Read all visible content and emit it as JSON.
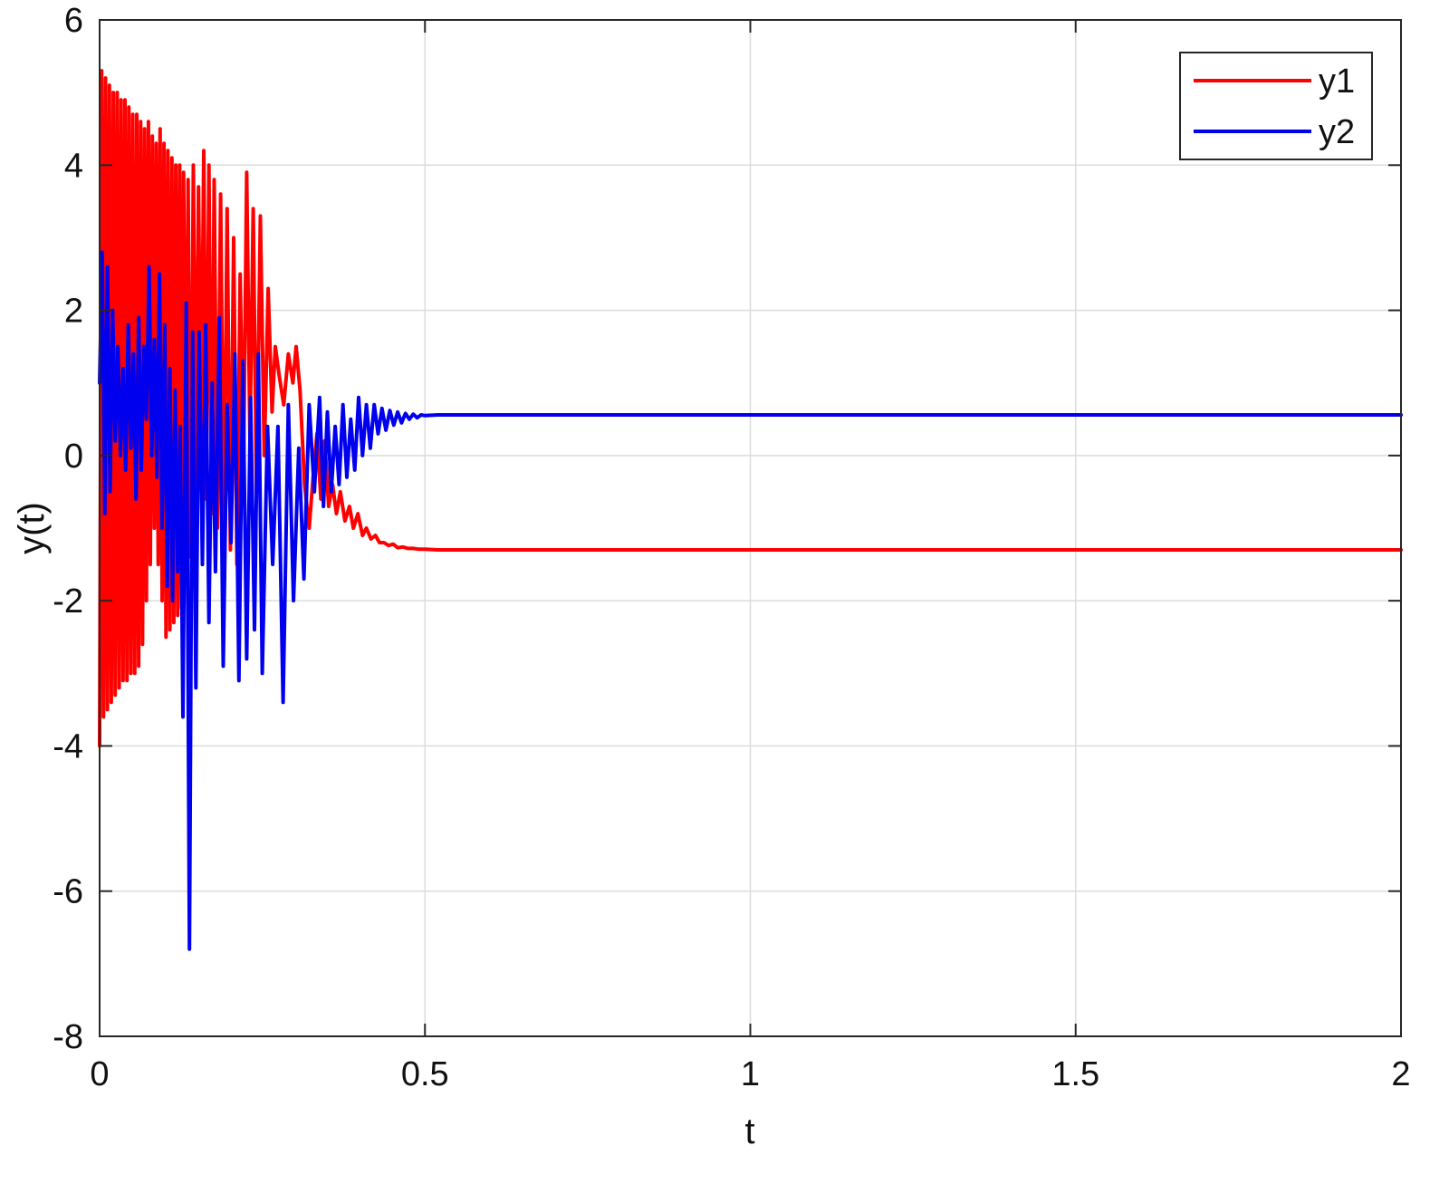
{
  "chart_data": {
    "type": "line",
    "title": "",
    "xlabel": "t",
    "ylabel": "y(t)",
    "xlim": [
      0,
      2
    ],
    "ylim": [
      -8,
      6
    ],
    "xticks": [
      0,
      0.5,
      1,
      1.5,
      2
    ],
    "xtick_labels": [
      "0",
      "0.5",
      "1",
      "1.5",
      "2"
    ],
    "yticks": [
      -8,
      -6,
      -4,
      -2,
      0,
      2,
      4,
      6
    ],
    "ytick_labels": [
      "-8",
      "-6",
      "-4",
      "-2",
      "0",
      "2",
      "4",
      "6"
    ],
    "grid": true,
    "legend_position": "top-right",
    "series": [
      {
        "name": "y1",
        "color": "#ff0000",
        "x": [
          0,
          0.003,
          0.006,
          0.009,
          0.012,
          0.015,
          0.018,
          0.021,
          0.024,
          0.027,
          0.03,
          0.033,
          0.036,
          0.039,
          0.042,
          0.045,
          0.048,
          0.051,
          0.054,
          0.057,
          0.06,
          0.063,
          0.066,
          0.069,
          0.072,
          0.075,
          0.078,
          0.081,
          0.084,
          0.087,
          0.09,
          0.093,
          0.096,
          0.099,
          0.102,
          0.105,
          0.108,
          0.111,
          0.114,
          0.117,
          0.12,
          0.123,
          0.126,
          0.129,
          0.133,
          0.136,
          0.14,
          0.144,
          0.148,
          0.152,
          0.156,
          0.16,
          0.164,
          0.168,
          0.172,
          0.176,
          0.181,
          0.186,
          0.191,
          0.196,
          0.201,
          0.206,
          0.211,
          0.216,
          0.221,
          0.226,
          0.231,
          0.236,
          0.241,
          0.247,
          0.253,
          0.259,
          0.265,
          0.27,
          0.276,
          0.283,
          0.29,
          0.297,
          0.302,
          0.308,
          0.315,
          0.322,
          0.328,
          0.334,
          0.34,
          0.346,
          0.352,
          0.358,
          0.364,
          0.37,
          0.377,
          0.384,
          0.39,
          0.397,
          0.404,
          0.41,
          0.417,
          0.424,
          0.43,
          0.437,
          0.444,
          0.451,
          0.458,
          0.466,
          0.474,
          0.482,
          0.49,
          0.5,
          0.52,
          0.55,
          0.6,
          0.8,
          1.0,
          1.2,
          1.4,
          1.6,
          1.8,
          2.0
        ],
        "y": [
          -4.0,
          5.3,
          -3.6,
          5.2,
          -3.5,
          5.1,
          -3.4,
          5.0,
          -3.3,
          5.0,
          -3.2,
          4.9,
          -3.1,
          4.9,
          -3.1,
          4.8,
          -3.0,
          4.7,
          -3.0,
          4.7,
          -2.9,
          4.6,
          -2.6,
          4.5,
          -2.0,
          4.6,
          -1.5,
          4.4,
          -1.0,
          4.3,
          -1.5,
          4.5,
          -2.0,
          4.3,
          -2.5,
          4.2,
          -2.4,
          4.1,
          -2.3,
          4.0,
          -2.2,
          4.0,
          -2.1,
          3.9,
          -0.7,
          3.8,
          -1.4,
          4.0,
          -0.4,
          3.7,
          0.3,
          4.2,
          -0.6,
          4.0,
          -0.8,
          3.8,
          -1.0,
          3.6,
          -1.2,
          3.4,
          -1.3,
          3.0,
          -1.5,
          2.5,
          -0.3,
          3.9,
          0.2,
          3.4,
          -0.5,
          3.3,
          0.0,
          2.3,
          0.6,
          1.5,
          1.1,
          0.7,
          1.4,
          1.0,
          1.5,
          0.9,
          -0.4,
          -1.0,
          -0.3,
          0.3,
          -0.6,
          0.2,
          -0.7,
          -0.4,
          -0.8,
          -0.5,
          -0.9,
          -0.7,
          -1.0,
          -0.8,
          -1.1,
          -1.0,
          -1.15,
          -1.1,
          -1.2,
          -1.2,
          -1.24,
          -1.22,
          -1.27,
          -1.26,
          -1.28,
          -1.28,
          -1.29,
          -1.29,
          -1.3,
          -1.3,
          -1.3,
          -1.3,
          -1.3,
          -1.3,
          -1.3,
          -1.3,
          -1.3,
          -1.3
        ]
      },
      {
        "name": "y2",
        "color": "#0000ee",
        "x": [
          0,
          0.004,
          0.008,
          0.012,
          0.016,
          0.02,
          0.024,
          0.028,
          0.032,
          0.036,
          0.04,
          0.044,
          0.048,
          0.052,
          0.056,
          0.06,
          0.064,
          0.068,
          0.072,
          0.076,
          0.08,
          0.084,
          0.088,
          0.092,
          0.096,
          0.1,
          0.104,
          0.108,
          0.112,
          0.116,
          0.12,
          0.124,
          0.128,
          0.133,
          0.138,
          0.143,
          0.148,
          0.153,
          0.158,
          0.163,
          0.168,
          0.173,
          0.178,
          0.184,
          0.19,
          0.196,
          0.202,
          0.208,
          0.214,
          0.22,
          0.226,
          0.232,
          0.238,
          0.244,
          0.25,
          0.258,
          0.266,
          0.274,
          0.282,
          0.29,
          0.298,
          0.306,
          0.314,
          0.322,
          0.33,
          0.338,
          0.344,
          0.35,
          0.356,
          0.362,
          0.368,
          0.374,
          0.38,
          0.386,
          0.392,
          0.398,
          0.404,
          0.41,
          0.416,
          0.422,
          0.428,
          0.434,
          0.44,
          0.446,
          0.452,
          0.458,
          0.464,
          0.47,
          0.476,
          0.482,
          0.488,
          0.494,
          0.5,
          0.52,
          0.55,
          0.6,
          0.8,
          1.0,
          1.2,
          1.4,
          1.6,
          1.8,
          2.0
        ],
        "y": [
          1.0,
          2.8,
          -0.8,
          2.6,
          -0.5,
          2.0,
          0.2,
          1.5,
          0.0,
          1.2,
          -0.2,
          1.8,
          0.1,
          1.4,
          -0.6,
          1.9,
          -0.2,
          1.5,
          0.5,
          2.6,
          0.0,
          1.6,
          -0.3,
          2.5,
          -1.0,
          1.8,
          -1.8,
          1.2,
          -2.0,
          0.9,
          -1.6,
          0.4,
          -3.6,
          2.1,
          -6.8,
          1.7,
          -3.2,
          1.7,
          -1.5,
          1.8,
          -2.3,
          1.0,
          -1.6,
          1.9,
          -2.9,
          0.7,
          -1.2,
          1.4,
          -3.1,
          1.3,
          -2.8,
          0.8,
          -2.4,
          1.4,
          -3.0,
          0.4,
          -1.5,
          0.4,
          -3.4,
          0.7,
          -2.0,
          0.1,
          -1.7,
          0.7,
          -0.5,
          0.8,
          -0.7,
          0.6,
          -0.5,
          0.4,
          -0.4,
          0.7,
          -0.3,
          0.5,
          -0.2,
          0.8,
          0.0,
          0.7,
          0.1,
          0.7,
          0.3,
          0.65,
          0.35,
          0.62,
          0.42,
          0.6,
          0.45,
          0.58,
          0.5,
          0.57,
          0.52,
          0.56,
          0.55,
          0.56,
          0.56,
          0.56,
          0.56,
          0.56,
          0.56,
          0.56,
          0.56,
          0.56,
          0.56
        ]
      }
    ]
  }
}
